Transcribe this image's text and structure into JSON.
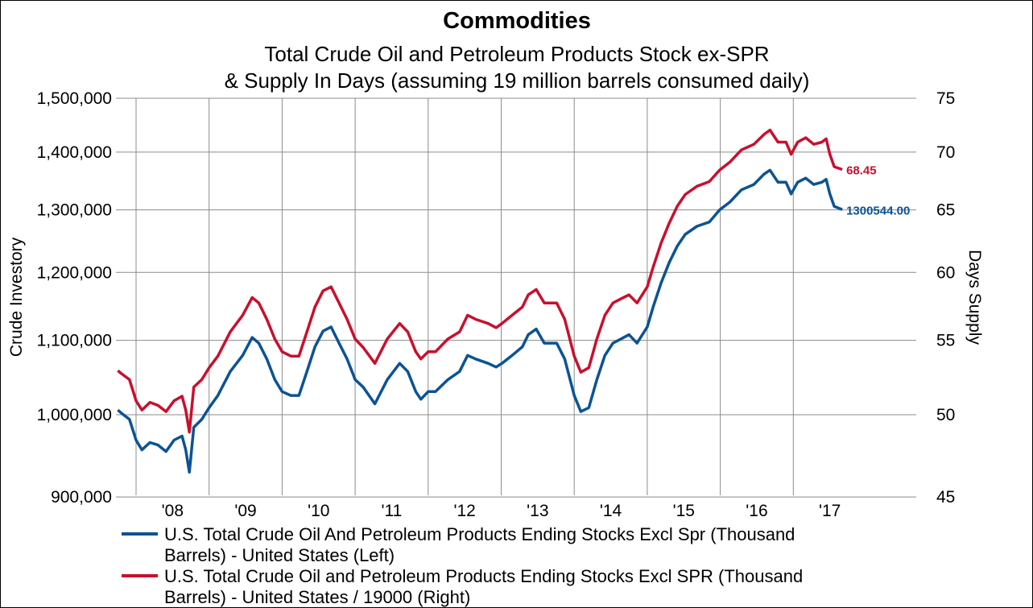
{
  "chart_data": {
    "type": "line",
    "title": "Commodities",
    "subtitle": [
      "Total Crude Oil and Petroleum Products Stock ex-SPR",
      "& Supply In Days (assuming 19 million barrels consumed daily)"
    ],
    "ylabel": "Crude Investory",
    "y2label": "Days Supply",
    "yscale": "log",
    "ylim": [
      900000,
      1500000
    ],
    "y2lim": [
      45,
      75
    ],
    "yticks": [
      "900,000",
      "1,000,000",
      "1,100,000",
      "1,200,000",
      "1,300,000",
      "1,400,000",
      "1,500,000"
    ],
    "ytick_values": [
      900000,
      1000000,
      1100000,
      1200000,
      1300000,
      1400000,
      1500000
    ],
    "y2ticks": [
      "45",
      "50",
      "55",
      "60",
      "65",
      "70",
      "75"
    ],
    "y2tick_values": [
      45,
      50,
      55,
      60,
      65,
      70,
      75
    ],
    "xticks": [
      "'08",
      "'09",
      "'10",
      "'11",
      "'12",
      "'13",
      "'14",
      "'15",
      "'16",
      "'17"
    ],
    "xtick_years": [
      2008,
      2009,
      2010,
      2011,
      2012,
      2013,
      2014,
      2015,
      2016,
      2017
    ],
    "grid": true,
    "legend_position": "bottom",
    "x": [
      2007.75,
      2007.8,
      2007.91,
      2008.0,
      2008.08,
      2008.19,
      2008.3,
      2008.41,
      2008.52,
      2008.63,
      2008.68,
      2008.73,
      2008.79,
      2008.9,
      2009.0,
      2009.12,
      2009.29,
      2009.46,
      2009.59,
      2009.68,
      2009.79,
      2009.9,
      2010.0,
      2010.12,
      2010.23,
      2010.34,
      2010.45,
      2010.56,
      2010.67,
      2010.78,
      2010.89,
      2011.0,
      2011.11,
      2011.27,
      2011.44,
      2011.61,
      2011.72,
      2011.83,
      2011.9,
      2012.0,
      2012.1,
      2012.27,
      2012.43,
      2012.54,
      2012.65,
      2012.82,
      2012.93,
      2013.01,
      2013.15,
      2013.29,
      2013.37,
      2013.48,
      2013.59,
      2013.76,
      2013.87,
      2014.0,
      2014.09,
      2014.2,
      2014.31,
      2014.42,
      2014.53,
      2014.64,
      2014.75,
      2014.86,
      2015.0,
      2015.08,
      2015.19,
      2015.3,
      2015.41,
      2015.52,
      2015.68,
      2015.85,
      2015.99,
      2016.13,
      2016.29,
      2016.46,
      2016.6,
      2016.68,
      2016.79,
      2016.9,
      2016.97,
      2017.06,
      2017.17,
      2017.28,
      2017.39,
      2017.45,
      2017.5,
      2017.56,
      2017.67
    ],
    "series": [
      {
        "name": "U.S. Total Crude Oil And Petroleum Products Ending Stocks Excl Spr (Thousand Barrels) - United States  (Left)",
        "legend_lines": [
          "U.S. Total Crude Oil And Petroleum Products Ending Stocks Excl Spr (Thousand",
          "Barrels) - United States  (Left)"
        ],
        "axis": "left",
        "color": "#0b5394",
        "last_label": "1300544.00",
        "values": [
          1006000,
          1002000,
          994000,
          968000,
          956000,
          965000,
          962000,
          954000,
          968000,
          973000,
          956000,
          929000,
          984000,
          994000,
          1009000,
          1025000,
          1057000,
          1079000,
          1104000,
          1096000,
          1074000,
          1046000,
          1030000,
          1025000,
          1025000,
          1057000,
          1091000,
          1113000,
          1119000,
          1096000,
          1074000,
          1046000,
          1036000,
          1014000,
          1046000,
          1068000,
          1057000,
          1030000,
          1020000,
          1030000,
          1030000,
          1046000,
          1057000,
          1079000,
          1074000,
          1068000,
          1063000,
          1068000,
          1079000,
          1091000,
          1108000,
          1116000,
          1096000,
          1096000,
          1074000,
          1025000,
          1004000,
          1009000,
          1046000,
          1079000,
          1096000,
          1102000,
          1108000,
          1096000,
          1119000,
          1148000,
          1184000,
          1215000,
          1241000,
          1260000,
          1273000,
          1280000,
          1300000,
          1313000,
          1334000,
          1343000,
          1361000,
          1368000,
          1347000,
          1347000,
          1327000,
          1347000,
          1354000,
          1343000,
          1347000,
          1352000,
          1327000,
          1306000,
          1300544
        ]
      },
      {
        "name": "U.S. Total Crude Oil and Petroleum Products Ending Stocks Excl SPR (Thousand Barrels) - United States / 19000  (Right)",
        "legend_lines": [
          "U.S. Total Crude Oil and Petroleum Products Ending Stocks Excl SPR (Thousand",
          "Barrels) - United States / 19000  (Right)"
        ],
        "axis": "right",
        "color": "#c8102e",
        "last_label": "68.45",
        "values": [
          52.9,
          52.7,
          52.3,
          50.9,
          50.3,
          50.8,
          50.6,
          50.2,
          50.9,
          51.2,
          50.3,
          48.9,
          51.8,
          52.3,
          53.1,
          53.9,
          55.6,
          56.8,
          58.1,
          57.7,
          56.5,
          55.1,
          54.2,
          53.9,
          53.9,
          55.6,
          57.4,
          58.6,
          58.9,
          57.7,
          56.5,
          55.1,
          54.5,
          53.4,
          55.1,
          56.2,
          55.6,
          54.2,
          53.7,
          54.2,
          54.2,
          55.1,
          55.6,
          56.8,
          56.5,
          56.2,
          55.9,
          56.2,
          56.8,
          57.4,
          58.3,
          58.7,
          57.7,
          57.7,
          56.5,
          53.9,
          52.8,
          53.1,
          55.1,
          56.8,
          57.7,
          58.0,
          58.3,
          57.7,
          58.9,
          60.4,
          62.3,
          63.9,
          65.3,
          66.3,
          67.0,
          67.4,
          68.4,
          69.1,
          70.2,
          70.7,
          71.6,
          72.0,
          70.9,
          70.9,
          69.8,
          70.9,
          71.3,
          70.7,
          70.9,
          71.2,
          69.8,
          68.7,
          68.45
        ]
      }
    ]
  }
}
